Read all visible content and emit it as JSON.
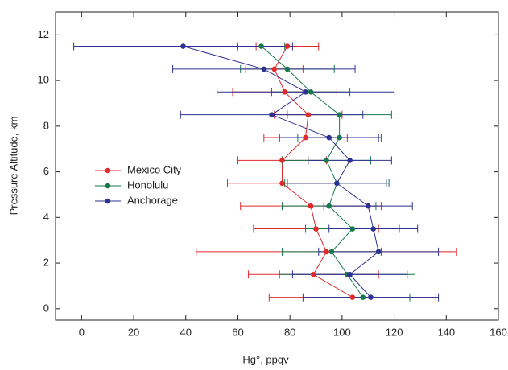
{
  "chart_data": {
    "type": "profile",
    "x_label": "Hg°, ppqv",
    "y_label": "Pressure Altitude, km",
    "y": [
      0.5,
      1.5,
      2.5,
      3.5,
      4.5,
      5.5,
      6.5,
      7.5,
      8.5,
      9.5,
      10.5,
      11.5
    ],
    "series": [
      {
        "name": "Mexico City",
        "color": "#e0282d",
        "values": [
          104,
          89,
          94,
          90,
          88,
          77,
          77,
          86,
          87,
          78,
          74,
          79
        ],
        "errors": [
          32,
          25,
          50,
          24,
          27,
          21,
          17,
          16,
          13,
          20,
          11,
          12
        ]
      },
      {
        "name": "Honolulu",
        "color": "#16784b",
        "values": [
          108,
          102,
          96,
          104,
          95,
          98,
          94,
          99,
          99,
          88,
          79,
          69
        ],
        "errors": [
          18,
          26,
          19,
          18,
          18,
          20,
          17,
          16,
          20,
          15,
          18,
          9
        ]
      },
      {
        "name": "Anchorage",
        "color": "#2e3192",
        "values": [
          111,
          103,
          114,
          112,
          110,
          98,
          103,
          95,
          73,
          86,
          70,
          39
        ],
        "errors": [
          26,
          22,
          23,
          17,
          17,
          19,
          16,
          19,
          35,
          34,
          35,
          42
        ]
      }
    ],
    "xlim": [
      -10,
      160
    ],
    "xticks": [
      0,
      20,
      40,
      60,
      80,
      100,
      120,
      140,
      160
    ],
    "ylim": [
      -0.5,
      13
    ],
    "yticks": [
      0,
      2,
      4,
      6,
      8,
      10,
      12
    ],
    "legend": "left"
  }
}
